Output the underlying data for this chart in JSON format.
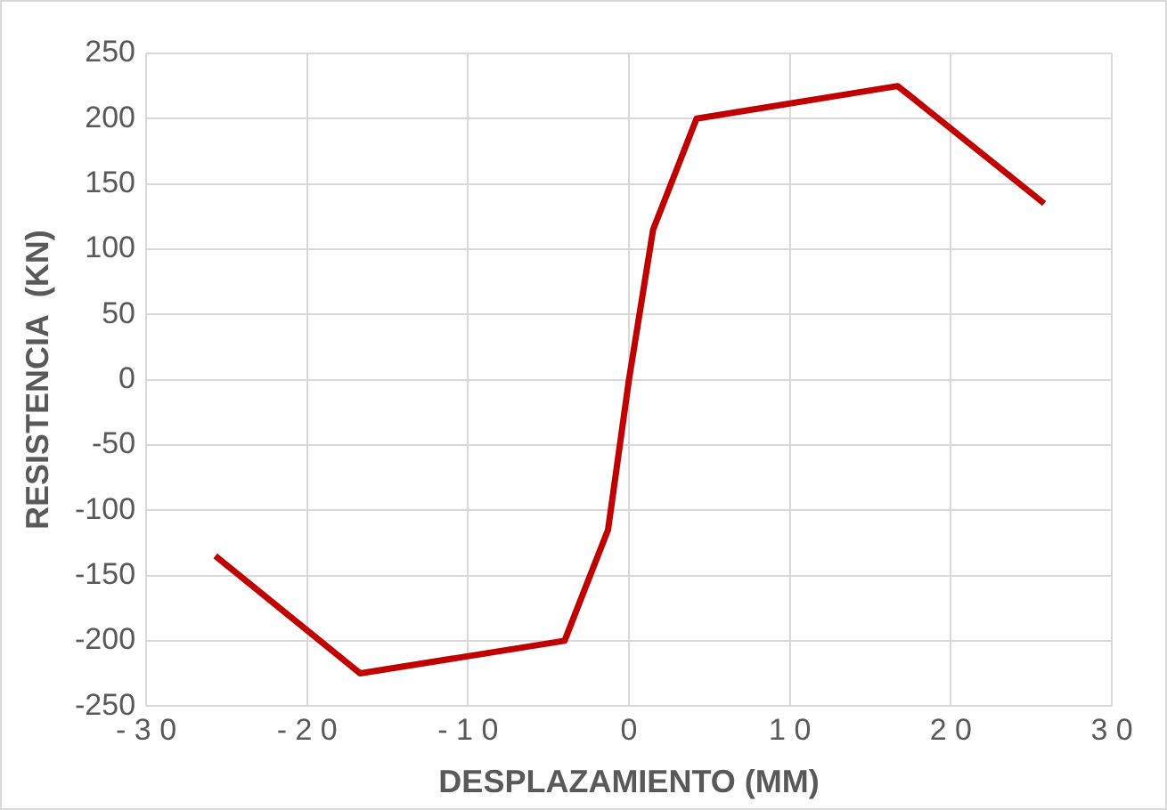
{
  "chart_data": {
    "type": "line",
    "xlabel": "DESPLAZAMIENTO (MM)",
    "ylabel": "RESISTENCIA  (KN)",
    "x": [
      -25.7,
      -16.7,
      -4,
      -1.3,
      0,
      1.5,
      4.2,
      16.7,
      25.8
    ],
    "series": [
      {
        "color": "#c00000",
        "values": [
          -135,
          -225,
          -200,
          -115,
          0,
          115,
          200,
          225,
          135
        ]
      }
    ],
    "xlim": [
      -30,
      30
    ],
    "xticks": [
      -30,
      -20,
      -10,
      0,
      10,
      20,
      30
    ],
    "ylim": [
      -250,
      250
    ],
    "yticks": [
      -250,
      -200,
      -150,
      -100,
      -50,
      0,
      50,
      100,
      150,
      200,
      250
    ],
    "grid": true,
    "legend": false,
    "marker": "none",
    "line_style": "solid"
  }
}
